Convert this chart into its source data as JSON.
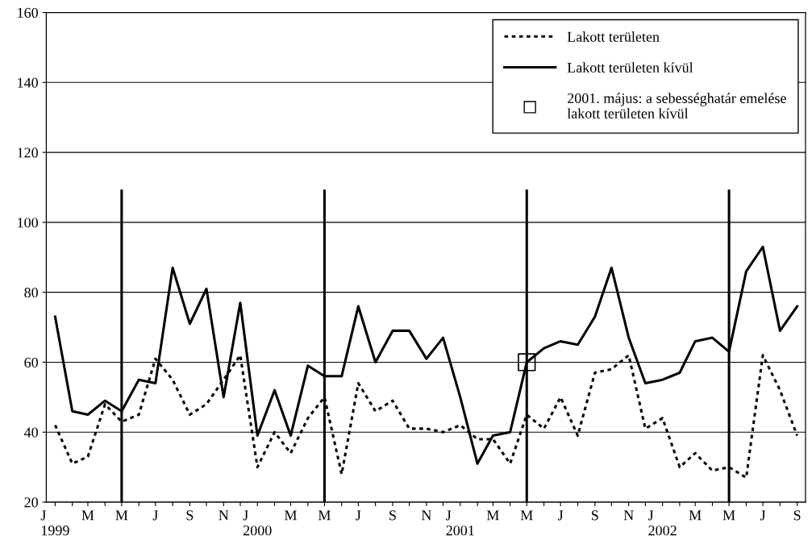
{
  "chart_data": {
    "type": "line",
    "x": [
      "1999-01",
      "1999-02",
      "1999-03",
      "1999-04",
      "1999-05",
      "1999-06",
      "1999-07",
      "1999-08",
      "1999-09",
      "1999-10",
      "1999-11",
      "1999-12",
      "2000-01",
      "2000-02",
      "2000-03",
      "2000-04",
      "2000-05",
      "2000-06",
      "2000-07",
      "2000-08",
      "2000-09",
      "2000-10",
      "2000-11",
      "2000-12",
      "2001-01",
      "2001-02",
      "2001-03",
      "2001-04",
      "2001-05",
      "2001-06",
      "2001-07",
      "2001-08",
      "2001-09",
      "2001-10",
      "2001-11",
      "2001-12",
      "2002-01",
      "2002-02",
      "2002-03",
      "2002-04",
      "2002-05",
      "2002-06",
      "2002-07",
      "2002-08",
      "2002-09"
    ],
    "series": [
      {
        "name": "Lakott területen",
        "color": "#000000",
        "line_style": "dotted",
        "values": [
          42,
          31,
          33,
          48,
          43,
          45,
          61,
          55,
          45,
          48,
          55,
          62,
          30,
          40,
          34,
          44,
          50,
          28,
          54,
          46,
          49,
          41,
          41,
          40,
          42,
          38,
          38,
          31,
          45,
          41,
          50,
          39,
          57,
          58,
          62,
          41,
          44,
          30,
          34,
          29,
          30,
          27,
          62,
          52,
          39
        ]
      },
      {
        "name": "Lakott területen kívül",
        "color": "#000000",
        "line_style": "solid",
        "values": [
          73,
          46,
          45,
          49,
          46,
          55,
          54,
          87,
          71,
          81,
          50,
          77,
          39,
          52,
          39,
          59,
          56,
          56,
          76,
          60,
          69,
          69,
          61,
          67,
          50,
          31,
          39,
          40,
          60,
          64,
          66,
          65,
          73,
          87,
          67,
          54,
          55,
          57,
          66,
          67,
          63,
          86,
          93,
          69,
          76
        ]
      },
      {
        "name": "2001. május: a sebességhatár emelése\nlakott területen kívül",
        "type": "scatter",
        "marker": "square",
        "color": "#000000",
        "x": [
          "2001-05"
        ],
        "values": [
          60
        ]
      },
      {
        "type": "line",
        "color": "#000000",
        "line_style": "solid",
        "x": [
          "1999-05",
          "1999-05"
        ],
        "values": [
          20,
          109
        ]
      },
      {
        "type": "line",
        "color": "#000000",
        "line_style": "solid",
        "x": [
          "2000-05",
          "2000-05"
        ],
        "values": [
          20,
          109
        ]
      },
      {
        "type": "line",
        "color": "#000000",
        "line_style": "solid",
        "x": [
          "2001-05",
          "2001-05"
        ],
        "values": [
          20,
          109
        ]
      },
      {
        "type": "line",
        "color": "#000000",
        "line_style": "solid",
        "x": [
          "2002-05",
          "2002-05"
        ],
        "values": [
          20,
          109
        ]
      }
    ],
    "xlim": [
      "1998-12-16",
      "2002-09-16"
    ],
    "xticks": [
      {
        "value": "1999-01",
        "label": "J\n1999"
      },
      {
        "value": "1999-02",
        "label": null
      },
      {
        "value": "1999-03",
        "label": "M"
      },
      {
        "value": "1999-04",
        "label": null
      },
      {
        "value": "1999-05",
        "label": "M"
      },
      {
        "value": "1999-06",
        "label": null
      },
      {
        "value": "1999-07",
        "label": "J"
      },
      {
        "value": "1999-08",
        "label": null
      },
      {
        "value": "1999-09",
        "label": "S"
      },
      {
        "value": "1999-10",
        "label": null
      },
      {
        "value": "1999-11",
        "label": "N"
      },
      {
        "value": "1999-12",
        "label": null
      },
      {
        "value": "2000-01",
        "label": "J\n2000"
      },
      {
        "value": "2000-02",
        "label": null
      },
      {
        "value": "2000-03",
        "label": "M"
      },
      {
        "value": "2000-04",
        "label": null
      },
      {
        "value": "2000-05",
        "label": "M"
      },
      {
        "value": "2000-06",
        "label": null
      },
      {
        "value": "2000-07",
        "label": "J"
      },
      {
        "value": "2000-08",
        "label": null
      },
      {
        "value": "2000-09",
        "label": "S"
      },
      {
        "value": "2000-10",
        "label": null
      },
      {
        "value": "2000-11",
        "label": "N"
      },
      {
        "value": "2000-12",
        "label": null
      },
      {
        "value": "2001-01",
        "label": "J\n2001"
      },
      {
        "value": "2001-02",
        "label": null
      },
      {
        "value": "2001-03",
        "label": "M"
      },
      {
        "value": "2001-04",
        "label": null
      },
      {
        "value": "2001-05",
        "label": "M"
      },
      {
        "value": "2001-06",
        "label": null
      },
      {
        "value": "2001-07",
        "label": "J"
      },
      {
        "value": "2001-08",
        "label": null
      },
      {
        "value": "2001-09",
        "label": "S"
      },
      {
        "value": "2001-10",
        "label": null
      },
      {
        "value": "2001-11",
        "label": "N"
      },
      {
        "value": "2001-12",
        "label": null
      },
      {
        "value": "2002-01",
        "label": "J\n2002"
      },
      {
        "value": "2002-02",
        "label": null
      },
      {
        "value": "2002-03",
        "label": "M"
      },
      {
        "value": "2002-04",
        "label": null
      },
      {
        "value": "2002-05",
        "label": "M"
      },
      {
        "value": "2002-06",
        "label": null
      },
      {
        "value": "2002-07",
        "label": "J"
      },
      {
        "value": "2002-08",
        "label": null
      },
      {
        "value": "2002-09",
        "label": "S"
      }
    ],
    "ylim": [
      20,
      160
    ],
    "yticks": [
      20,
      40,
      60,
      80,
      100,
      120,
      140,
      160
    ],
    "grid": "y",
    "legend": "top right",
    "marker": "none"
  }
}
